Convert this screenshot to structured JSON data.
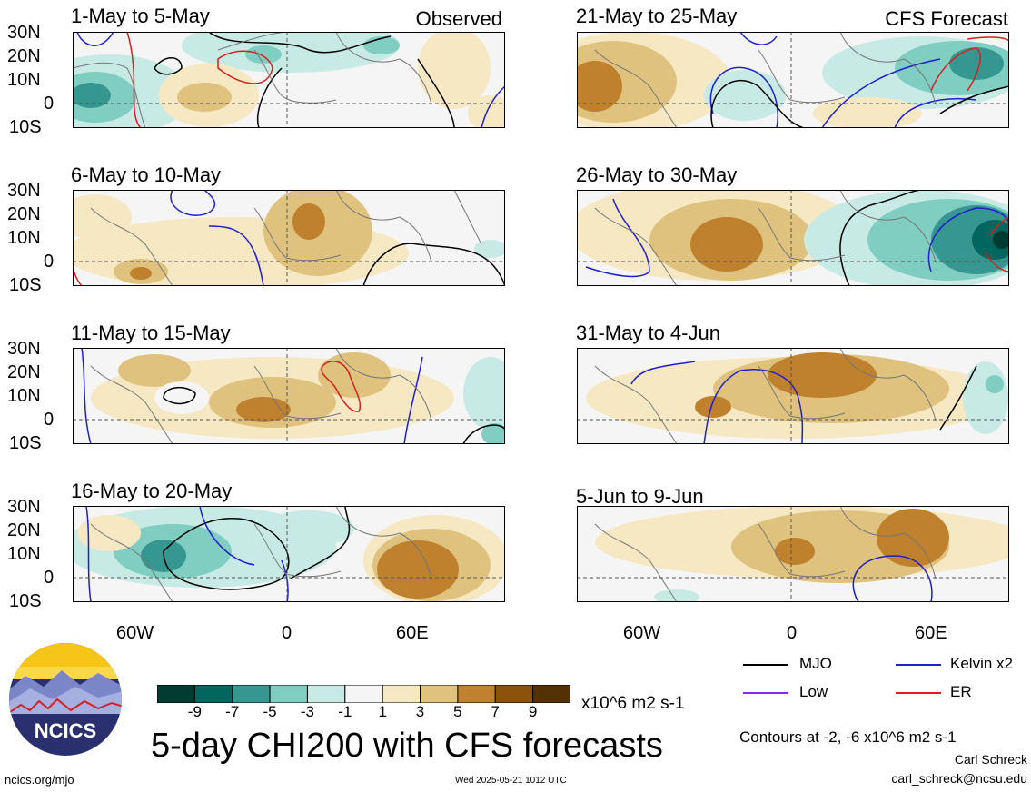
{
  "panels": [
    {
      "title": "1-May to 5-May",
      "tag": "Observed"
    },
    {
      "title": "6-May to 10-May",
      "tag": ""
    },
    {
      "title": "11-May to 15-May",
      "tag": ""
    },
    {
      "title": "16-May to 20-May",
      "tag": ""
    },
    {
      "title": "21-May to 25-May",
      "tag": "CFS Forecast"
    },
    {
      "title": "26-May to 30-May",
      "tag": ""
    },
    {
      "title": "31-May to 4-Jun",
      "tag": ""
    },
    {
      "title": "5-Jun to 9-Jun",
      "tag": ""
    }
  ],
  "lat_labels": [
    "30N",
    "20N",
    "10N",
    "0",
    "10S"
  ],
  "lon_labels": [
    "60W",
    "0",
    "60E"
  ],
  "colorbar": {
    "colors": [
      "#003c30",
      "#01665e",
      "#35978f",
      "#80cdc1",
      "#c7eae5",
      "#f5f5f5",
      "#f6e8c3",
      "#dfc27d",
      "#bf812d",
      "#8c510a",
      "#543005"
    ],
    "labels": [
      "-9",
      "-7",
      "-5",
      "-3",
      "-1",
      "1",
      "3",
      "5",
      "7",
      "9"
    ],
    "units": "x10^6 m2 s-1"
  },
  "legend": [
    {
      "name": "MJO",
      "color": "#000000"
    },
    {
      "name": "Kelvin x2",
      "color": "#1f1fcc"
    },
    {
      "name": "Low",
      "color": "#8a2be2"
    },
    {
      "name": "ER",
      "color": "#d62020"
    }
  ],
  "main_title": "5-day CHI200 with CFS forecasts",
  "contours_note": "Contours at -2, -6 x10^6 m2 s-1",
  "author": "Carl Schreck",
  "email": "carl_schreck@ncsu.edu",
  "url": "ncics.org/mjo",
  "timestamp": "Wed 2025-05-21 1012 UTC",
  "logo_text": "NCICS"
}
